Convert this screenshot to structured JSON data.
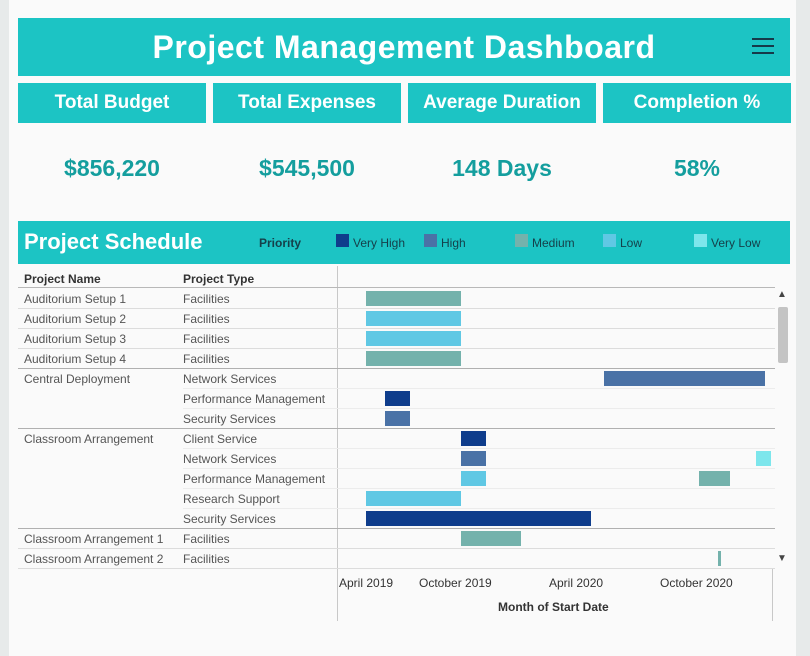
{
  "header": {
    "title": "Project Management Dashboard"
  },
  "kpis": [
    {
      "label": "Total Budget",
      "value": "$856,220"
    },
    {
      "label": "Total Expenses",
      "value": "$545,500"
    },
    {
      "label": "Average Duration",
      "value": "148 Days"
    },
    {
      "label": "Completion %",
      "value": "58%"
    }
  ],
  "schedule": {
    "title": "Project Schedule",
    "legend_title": "Priority",
    "legend": [
      {
        "label": "Very High",
        "color": "#0f3d8c"
      },
      {
        "label": "High",
        "color": "#4a72a6"
      },
      {
        "label": "Medium",
        "color": "#74b2ac"
      },
      {
        "label": "Low",
        "color": "#60c8e4"
      },
      {
        "label": "Very Low",
        "color": "#7de6ec"
      }
    ],
    "columns": {
      "name": "Project Name",
      "type": "Project Type"
    },
    "axis_title": "Month of Start Date",
    "axis_ticks": [
      "April 2019",
      "October 2019",
      "April 2020",
      "October 2020"
    ]
  },
  "chart_data": {
    "type": "gantt",
    "x_axis": {
      "label": "Month of Start Date",
      "ticks": [
        "April 2019",
        "October 2019",
        "April 2020",
        "October 2020"
      ],
      "range": [
        "2019-03-01",
        "2021-01-31"
      ]
    },
    "rows": [
      {
        "name": "Auditorium Setup 1",
        "type": "Facilities",
        "start": "2019-04-15",
        "end": "2019-09-15",
        "priority": "Medium"
      },
      {
        "name": "Auditorium Setup 2",
        "type": "Facilities",
        "start": "2019-04-15",
        "end": "2019-09-15",
        "priority": "Low"
      },
      {
        "name": "Auditorium Setup 3",
        "type": "Facilities",
        "start": "2019-04-15",
        "end": "2019-09-15",
        "priority": "Low"
      },
      {
        "name": "Auditorium Setup 4",
        "type": "Facilities",
        "start": "2019-04-15",
        "end": "2019-09-15",
        "priority": "Medium"
      },
      {
        "name": "Central Deployment",
        "type": "Network Services",
        "start": "2020-05-01",
        "end": "2021-01-15",
        "priority": "High"
      },
      {
        "name": "",
        "type": "Performance Management",
        "start": "2019-05-15",
        "end": "2019-06-25",
        "priority": "Very High"
      },
      {
        "name": "",
        "type": "Security Services",
        "start": "2019-05-15",
        "end": "2019-06-25",
        "priority": "High"
      },
      {
        "name": "Classroom Arrangement",
        "type": "Client Service",
        "start": "2019-09-15",
        "end": "2019-10-25",
        "priority": "Very High"
      },
      {
        "name": "",
        "type": "Network Services",
        "start": "2019-09-15",
        "end": "2019-10-25",
        "priority": "High"
      },
      {
        "name": "",
        "type": "Performance Management",
        "start": "2019-09-15",
        "end": "2019-10-25",
        "priority": "Low"
      },
      {
        "name": "",
        "type": "Performance Management",
        "start": "2020-10-01",
        "end": "2020-11-20",
        "priority": "Medium"
      },
      {
        "name": "",
        "type": "Network Services",
        "start": "2021-01-01",
        "end": "2021-01-25",
        "priority": "Very Low"
      },
      {
        "name": "",
        "type": "Research Support",
        "start": "2019-04-15",
        "end": "2019-09-15",
        "priority": "Low"
      },
      {
        "name": "",
        "type": "Security Services",
        "start": "2019-04-15",
        "end": "2020-04-10",
        "priority": "Very High"
      },
      {
        "name": "Classroom Arrangement 1",
        "type": "Facilities",
        "start": "2019-09-15",
        "end": "2019-12-20",
        "priority": "Medium"
      },
      {
        "name": "Classroom Arrangement 2",
        "type": "Facilities",
        "start": "2020-11-01",
        "end": "2020-11-05",
        "priority": "Medium"
      }
    ]
  }
}
